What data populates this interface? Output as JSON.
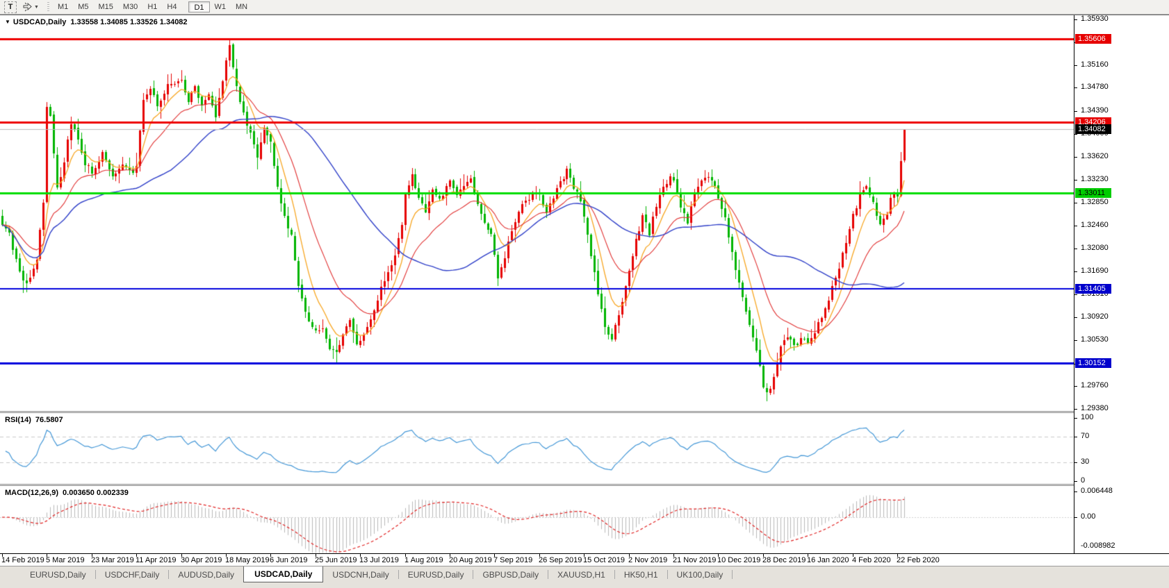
{
  "toolbar": {
    "text_tool_label": "T",
    "timeframes": [
      "M1",
      "M5",
      "M15",
      "M30",
      "H1",
      "H4",
      "D1",
      "W1",
      "MN"
    ],
    "active_timeframe": "D1"
  },
  "chart": {
    "header": {
      "symbol": "USDCAD,Daily",
      "ohlc_text": "1.33558 1.34085 1.33526 1.34082"
    }
  },
  "rsi": {
    "label": "RSI(14)",
    "value": "76.5807",
    "axis_labels": [
      "100",
      "70",
      "30",
      "0"
    ]
  },
  "macd": {
    "label": "MACD(12,26,9)",
    "values": "0.003650 0.002339",
    "axis_labels": [
      "0.006448",
      "0.00",
      "-0.008982"
    ]
  },
  "price_axis": {
    "ticks": [
      "1.35930",
      "1.35540",
      "1.35160",
      "1.34780",
      "1.34390",
      "1.34000",
      "1.33620",
      "1.33230",
      "1.32850",
      "1.32460",
      "1.32080",
      "1.31690",
      "1.31310",
      "1.30920",
      "1.30530",
      "1.30140",
      "1.29760",
      "1.29380"
    ],
    "badges": [
      {
        "value": "1.35606",
        "bg": "#e60000",
        "fg": "#ffffff"
      },
      {
        "value": "1.34206",
        "bg": "#e60000",
        "fg": "#ffffff"
      },
      {
        "value": "1.34082",
        "bg": "#000000",
        "fg": "#ffffff"
      },
      {
        "value": "1.33011",
        "bg": "#00cc00",
        "fg": "#000000"
      },
      {
        "value": "1.31405",
        "bg": "#0000cc",
        "fg": "#ffffff"
      },
      {
        "value": "1.30152",
        "bg": "#0000cc",
        "fg": "#ffffff"
      }
    ]
  },
  "time_axis": {
    "labels": [
      "14 Feb 2019",
      "5 Mar 2019",
      "23 Mar 2019",
      "11 Apr 2019",
      "30 Apr 2019",
      "18 May 2019",
      "6 Jun 2019",
      "25 Jun 2019",
      "13 Jul 2019",
      "1 Aug 2019",
      "20 Aug 2019",
      "7 Sep 2019",
      "26 Sep 2019",
      "15 Oct 2019",
      "2 Nov 2019",
      "21 Nov 2019",
      "10 Dec 2019",
      "28 Dec 2019",
      "16 Jan 2020",
      "4 Feb 2020",
      "22 Feb 2020"
    ]
  },
  "tabs": {
    "items": [
      "EURUSD,Daily",
      "USDCHF,Daily",
      "AUDUSD,Daily",
      "USDCAD,Daily",
      "USDCNH,Daily",
      "EURUSD,Daily",
      "GBPUSD,Daily",
      "XAUUSD,H1",
      "HK50,H1",
      "UK100,Daily"
    ],
    "active_index": 3
  },
  "chart_data": {
    "type": "candlestick",
    "symbol": "USDCAD",
    "timeframe": "Daily",
    "num_candles": 263,
    "price_range": [
      1.2938,
      1.3593
    ],
    "last_candle": {
      "open": 1.33558,
      "high": 1.34085,
      "low": 1.33526,
      "close": 1.34082
    },
    "candle_colors": {
      "up": "#e60000",
      "down": "#00b400"
    },
    "close_anchors": [
      [
        0,
        1.325
      ],
      [
        2,
        1.3232
      ],
      [
        4,
        1.3185
      ],
      [
        6,
        1.3152
      ],
      [
        8,
        1.3158
      ],
      [
        10,
        1.3185
      ],
      [
        12,
        1.3288
      ],
      [
        13,
        1.3448
      ],
      [
        14,
        1.343
      ],
      [
        16,
        1.331
      ],
      [
        18,
        1.3355
      ],
      [
        20,
        1.3418
      ],
      [
        22,
        1.3392
      ],
      [
        24,
        1.3348
      ],
      [
        26,
        1.3338
      ],
      [
        29,
        1.3368
      ],
      [
        32,
        1.333
      ],
      [
        35,
        1.335
      ],
      [
        38,
        1.3338
      ],
      [
        39,
        1.3348
      ],
      [
        41,
        1.3462
      ],
      [
        43,
        1.348
      ],
      [
        45,
        1.345
      ],
      [
        47,
        1.3472
      ],
      [
        49,
        1.3488
      ],
      [
        52,
        1.349
      ],
      [
        54,
        1.3458
      ],
      [
        56,
        1.348
      ],
      [
        58,
        1.3445
      ],
      [
        60,
        1.3466
      ],
      [
        62,
        1.3428
      ],
      [
        64,
        1.349
      ],
      [
        66,
        1.3548
      ],
      [
        68,
        1.3482
      ],
      [
        70,
        1.3435
      ],
      [
        72,
        1.3402
      ],
      [
        74,
        1.3358
      ],
      [
        76,
        1.3408
      ],
      [
        78,
        1.3388
      ],
      [
        80,
        1.3312
      ],
      [
        82,
        1.3262
      ],
      [
        84,
        1.3228
      ],
      [
        86,
        1.3148
      ],
      [
        88,
        1.3098
      ],
      [
        90,
        1.3072
      ],
      [
        91,
        1.3065
      ],
      [
        93,
        1.3078
      ],
      [
        95,
        1.3038
      ],
      [
        97,
        1.3032
      ],
      [
        99,
        1.3062
      ],
      [
        101,
        1.3088
      ],
      [
        103,
        1.3052
      ],
      [
        104,
        1.3048
      ],
      [
        106,
        1.3078
      ],
      [
        108,
        1.3108
      ],
      [
        110,
        1.3142
      ],
      [
        112,
        1.3165
      ],
      [
        114,
        1.3198
      ],
      [
        116,
        1.3245
      ],
      [
        117,
        1.3295
      ],
      [
        119,
        1.3328
      ],
      [
        121,
        1.3288
      ],
      [
        123,
        1.3272
      ],
      [
        125,
        1.3308
      ],
      [
        127,
        1.3288
      ],
      [
        129,
        1.3312
      ],
      [
        130,
        1.3322
      ],
      [
        132,
        1.3295
      ],
      [
        134,
        1.3312
      ],
      [
        136,
        1.3328
      ],
      [
        138,
        1.3282
      ],
      [
        140,
        1.3252
      ],
      [
        142,
        1.3228
      ],
      [
        143,
        1.3198
      ],
      [
        144,
        1.3158
      ],
      [
        146,
        1.3192
      ],
      [
        148,
        1.3238
      ],
      [
        150,
        1.3268
      ],
      [
        152,
        1.3288
      ],
      [
        154,
        1.3295
      ],
      [
        156,
        1.3298
      ],
      [
        158,
        1.3272
      ],
      [
        160,
        1.3292
      ],
      [
        162,
        1.3318
      ],
      [
        164,
        1.3338
      ],
      [
        166,
        1.3312
      ],
      [
        168,
        1.3292
      ],
      [
        169,
        1.3262
      ],
      [
        171,
        1.3198
      ],
      [
        173,
        1.3132
      ],
      [
        175,
        1.3078
      ],
      [
        177,
        1.3058
      ],
      [
        179,
        1.3092
      ],
      [
        181,
        1.3148
      ],
      [
        182,
        1.3172
      ],
      [
        184,
        1.3222
      ],
      [
        186,
        1.3262
      ],
      [
        188,
        1.3232
      ],
      [
        190,
        1.3282
      ],
      [
        192,
        1.3308
      ],
      [
        194,
        1.3328
      ],
      [
        195,
        1.3318
      ],
      [
        197,
        1.3282
      ],
      [
        199,
        1.3252
      ],
      [
        201,
        1.3298
      ],
      [
        203,
        1.3318
      ],
      [
        205,
        1.3328
      ],
      [
        207,
        1.3308
      ],
      [
        208,
        1.3288
      ],
      [
        210,
        1.3258
      ],
      [
        212,
        1.3198
      ],
      [
        214,
        1.3148
      ],
      [
        216,
        1.3098
      ],
      [
        218,
        1.3058
      ],
      [
        220,
        1.3008
      ],
      [
        221,
        1.2978
      ],
      [
        222,
        1.2962
      ],
      [
        224,
        1.2988
      ],
      [
        226,
        1.3042
      ],
      [
        228,
        1.3062
      ],
      [
        230,
        1.3042
      ],
      [
        232,
        1.3056
      ],
      [
        234,
        1.3048
      ],
      [
        236,
        1.3068
      ],
      [
        238,
        1.3092
      ],
      [
        240,
        1.3122
      ],
      [
        242,
        1.3158
      ],
      [
        244,
        1.3198
      ],
      [
        246,
        1.3238
      ],
      [
        247,
        1.3262
      ],
      [
        249,
        1.3298
      ],
      [
        251,
        1.3315
      ],
      [
        253,
        1.3282
      ],
      [
        255,
        1.3252
      ],
      [
        257,
        1.327
      ],
      [
        258,
        1.3292
      ],
      [
        259,
        1.33
      ],
      [
        260,
        1.3296
      ],
      [
        261,
        1.3356
      ],
      [
        262,
        1.34082
      ]
    ],
    "forced_extremes": [
      {
        "index": 6,
        "low": 1.3133
      },
      {
        "index": 66,
        "high": 1.356
      },
      {
        "index": 97,
        "low": 1.30165
      },
      {
        "index": 222,
        "low": 1.2951
      }
    ],
    "hlines": [
      {
        "price": 1.35606,
        "color": "#ee0000",
        "width": 3
      },
      {
        "price": 1.34206,
        "color": "#ee0000",
        "width": 3
      },
      {
        "price": 1.34082,
        "color": "#bbbbbb",
        "width": 1
      },
      {
        "price": 1.33011,
        "color": "#00dd00",
        "width": 3
      },
      {
        "price": 1.31405,
        "color": "#0000dd",
        "width": 2
      },
      {
        "price": 1.30152,
        "color": "#0000dd",
        "width": 3
      }
    ],
    "moving_averages": [
      {
        "type": "ema",
        "period": 8,
        "color": "#f7a520",
        "width": 1.3
      },
      {
        "type": "ema",
        "period": 20,
        "color": "#e03030",
        "width": 1.1
      },
      {
        "type": "sma",
        "period": 50,
        "color": "#2f3fc8",
        "width": 1.4
      }
    ],
    "rsi": {
      "period": 14,
      "current": 76.5807,
      "upper_level": 70,
      "lower_level": 30,
      "range": [
        0,
        100
      ],
      "color": "#4296d6"
    },
    "macd": {
      "fast": 12,
      "slow": 26,
      "signal_period": 9,
      "current_main": 0.00365,
      "current_signal": 0.002339,
      "range": [
        -0.008982,
        0.006448
      ],
      "histogram_color": "#b9b9b9",
      "signal_color": "#e02020"
    }
  }
}
